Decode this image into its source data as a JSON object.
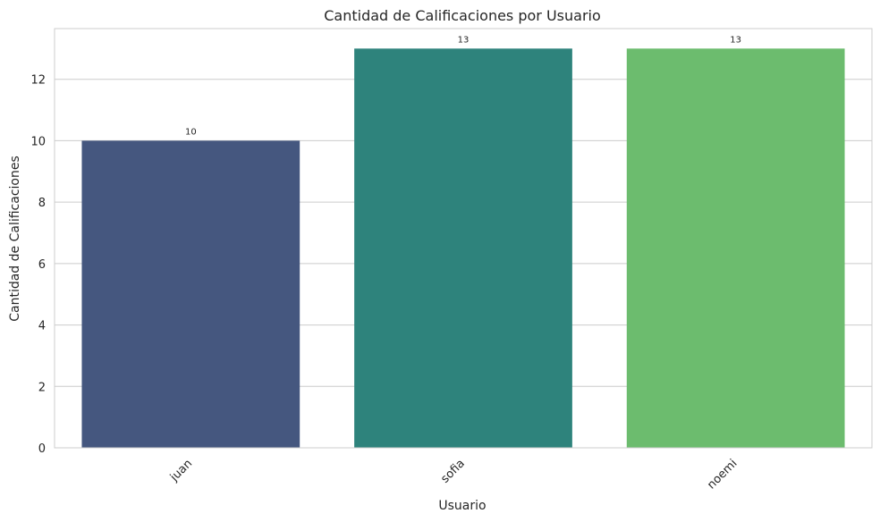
{
  "chart_data": {
    "type": "bar",
    "title": "Cantidad de Calificaciones por Usuario",
    "xlabel": "Usuario",
    "ylabel": "Cantidad de Calificaciones",
    "categories": [
      "juan",
      "sofia",
      "noemi"
    ],
    "values": [
      10,
      13,
      13
    ],
    "data_labels": [
      "10",
      "13",
      "13"
    ],
    "ylim": [
      0,
      13.65
    ],
    "yticks": [
      0,
      2,
      4,
      6,
      8,
      10,
      12
    ],
    "grid": "horizontal",
    "bar_colors": [
      "#45577f",
      "#2e837c",
      "#6cbc6e"
    ],
    "x_tick_rotation_deg": 45
  }
}
